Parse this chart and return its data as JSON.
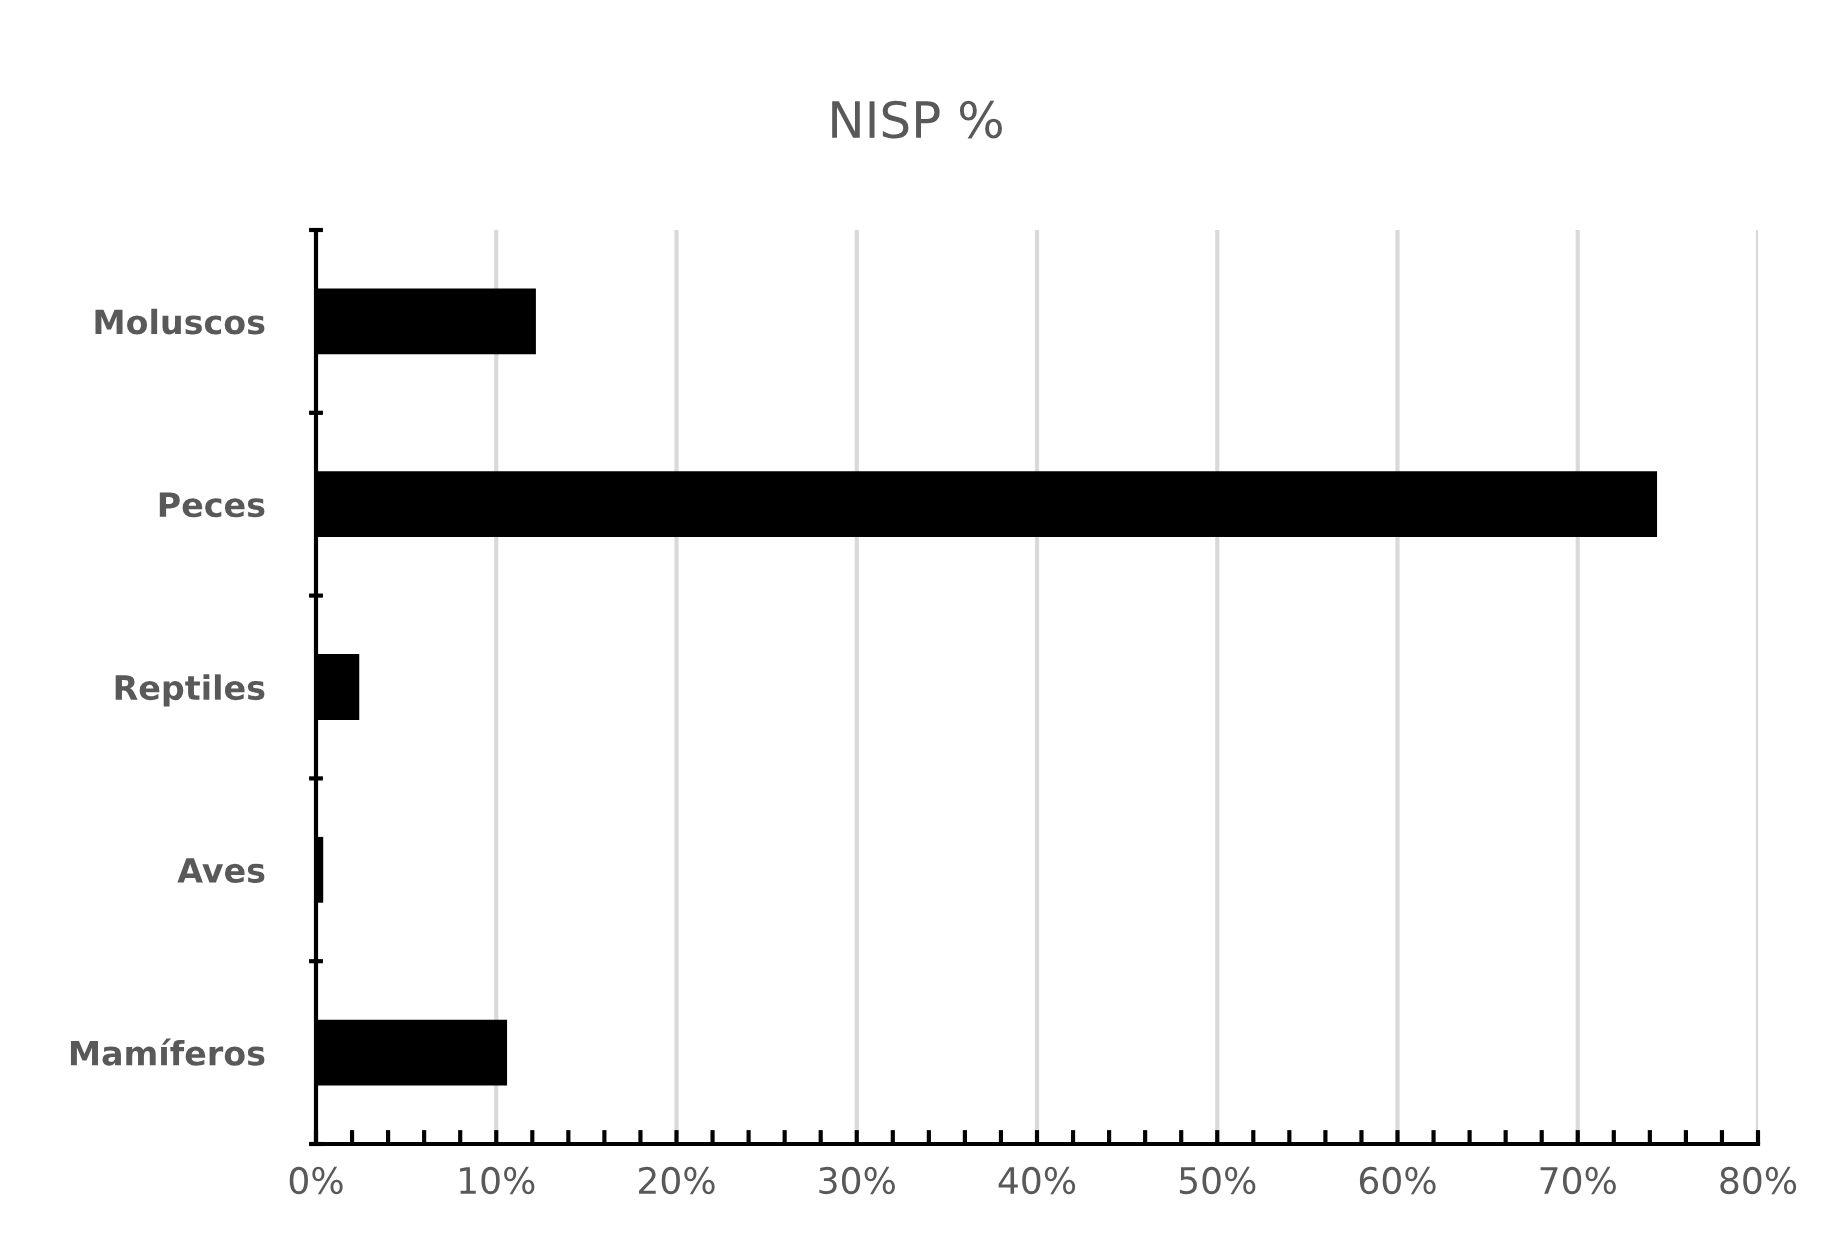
{
  "chart_data": {
    "type": "bar",
    "orientation": "horizontal",
    "title": "NISP %",
    "categories": [
      "Moluscos",
      "Peces",
      "Reptiles",
      "Aves",
      "Mamíferos"
    ],
    "values": [
      12.2,
      74.4,
      2.4,
      0.4,
      10.6
    ],
    "color": "#000000",
    "xlim": [
      0,
      80
    ],
    "xticks": [
      {
        "value": 0,
        "label": "0%"
      },
      {
        "value": 2,
        "label": null
      },
      {
        "value": 4,
        "label": null
      },
      {
        "value": 6,
        "label": null
      },
      {
        "value": 8,
        "label": null
      },
      {
        "value": 10,
        "label": "10%"
      },
      {
        "value": 12,
        "label": null
      },
      {
        "value": 14,
        "label": null
      },
      {
        "value": 16,
        "label": null
      },
      {
        "value": 18,
        "label": null
      },
      {
        "value": 20,
        "label": "20%"
      },
      {
        "value": 22,
        "label": null
      },
      {
        "value": 24,
        "label": null
      },
      {
        "value": 26,
        "label": null
      },
      {
        "value": 28,
        "label": null
      },
      {
        "value": 30,
        "label": "30%"
      },
      {
        "value": 32,
        "label": null
      },
      {
        "value": 34,
        "label": null
      },
      {
        "value": 36,
        "label": null
      },
      {
        "value": 38,
        "label": null
      },
      {
        "value": 40,
        "label": "40%"
      },
      {
        "value": 42,
        "label": null
      },
      {
        "value": 44,
        "label": null
      },
      {
        "value": 46,
        "label": null
      },
      {
        "value": 48,
        "label": null
      },
      {
        "value": 50,
        "label": "50%"
      },
      {
        "value": 52,
        "label": null
      },
      {
        "value": 54,
        "label": null
      },
      {
        "value": 56,
        "label": null
      },
      {
        "value": 58,
        "label": null
      },
      {
        "value": 60,
        "label": "60%"
      },
      {
        "value": 62,
        "label": null
      },
      {
        "value": 64,
        "label": null
      },
      {
        "value": 66,
        "label": null
      },
      {
        "value": 68,
        "label": null
      },
      {
        "value": 70,
        "label": "70%"
      },
      {
        "value": 72,
        "label": null
      },
      {
        "value": 74,
        "label": null
      },
      {
        "value": 76,
        "label": null
      },
      {
        "value": 78,
        "label": null
      },
      {
        "value": 80,
        "label": "80%"
      }
    ],
    "grid": "x",
    "legend": false
  }
}
